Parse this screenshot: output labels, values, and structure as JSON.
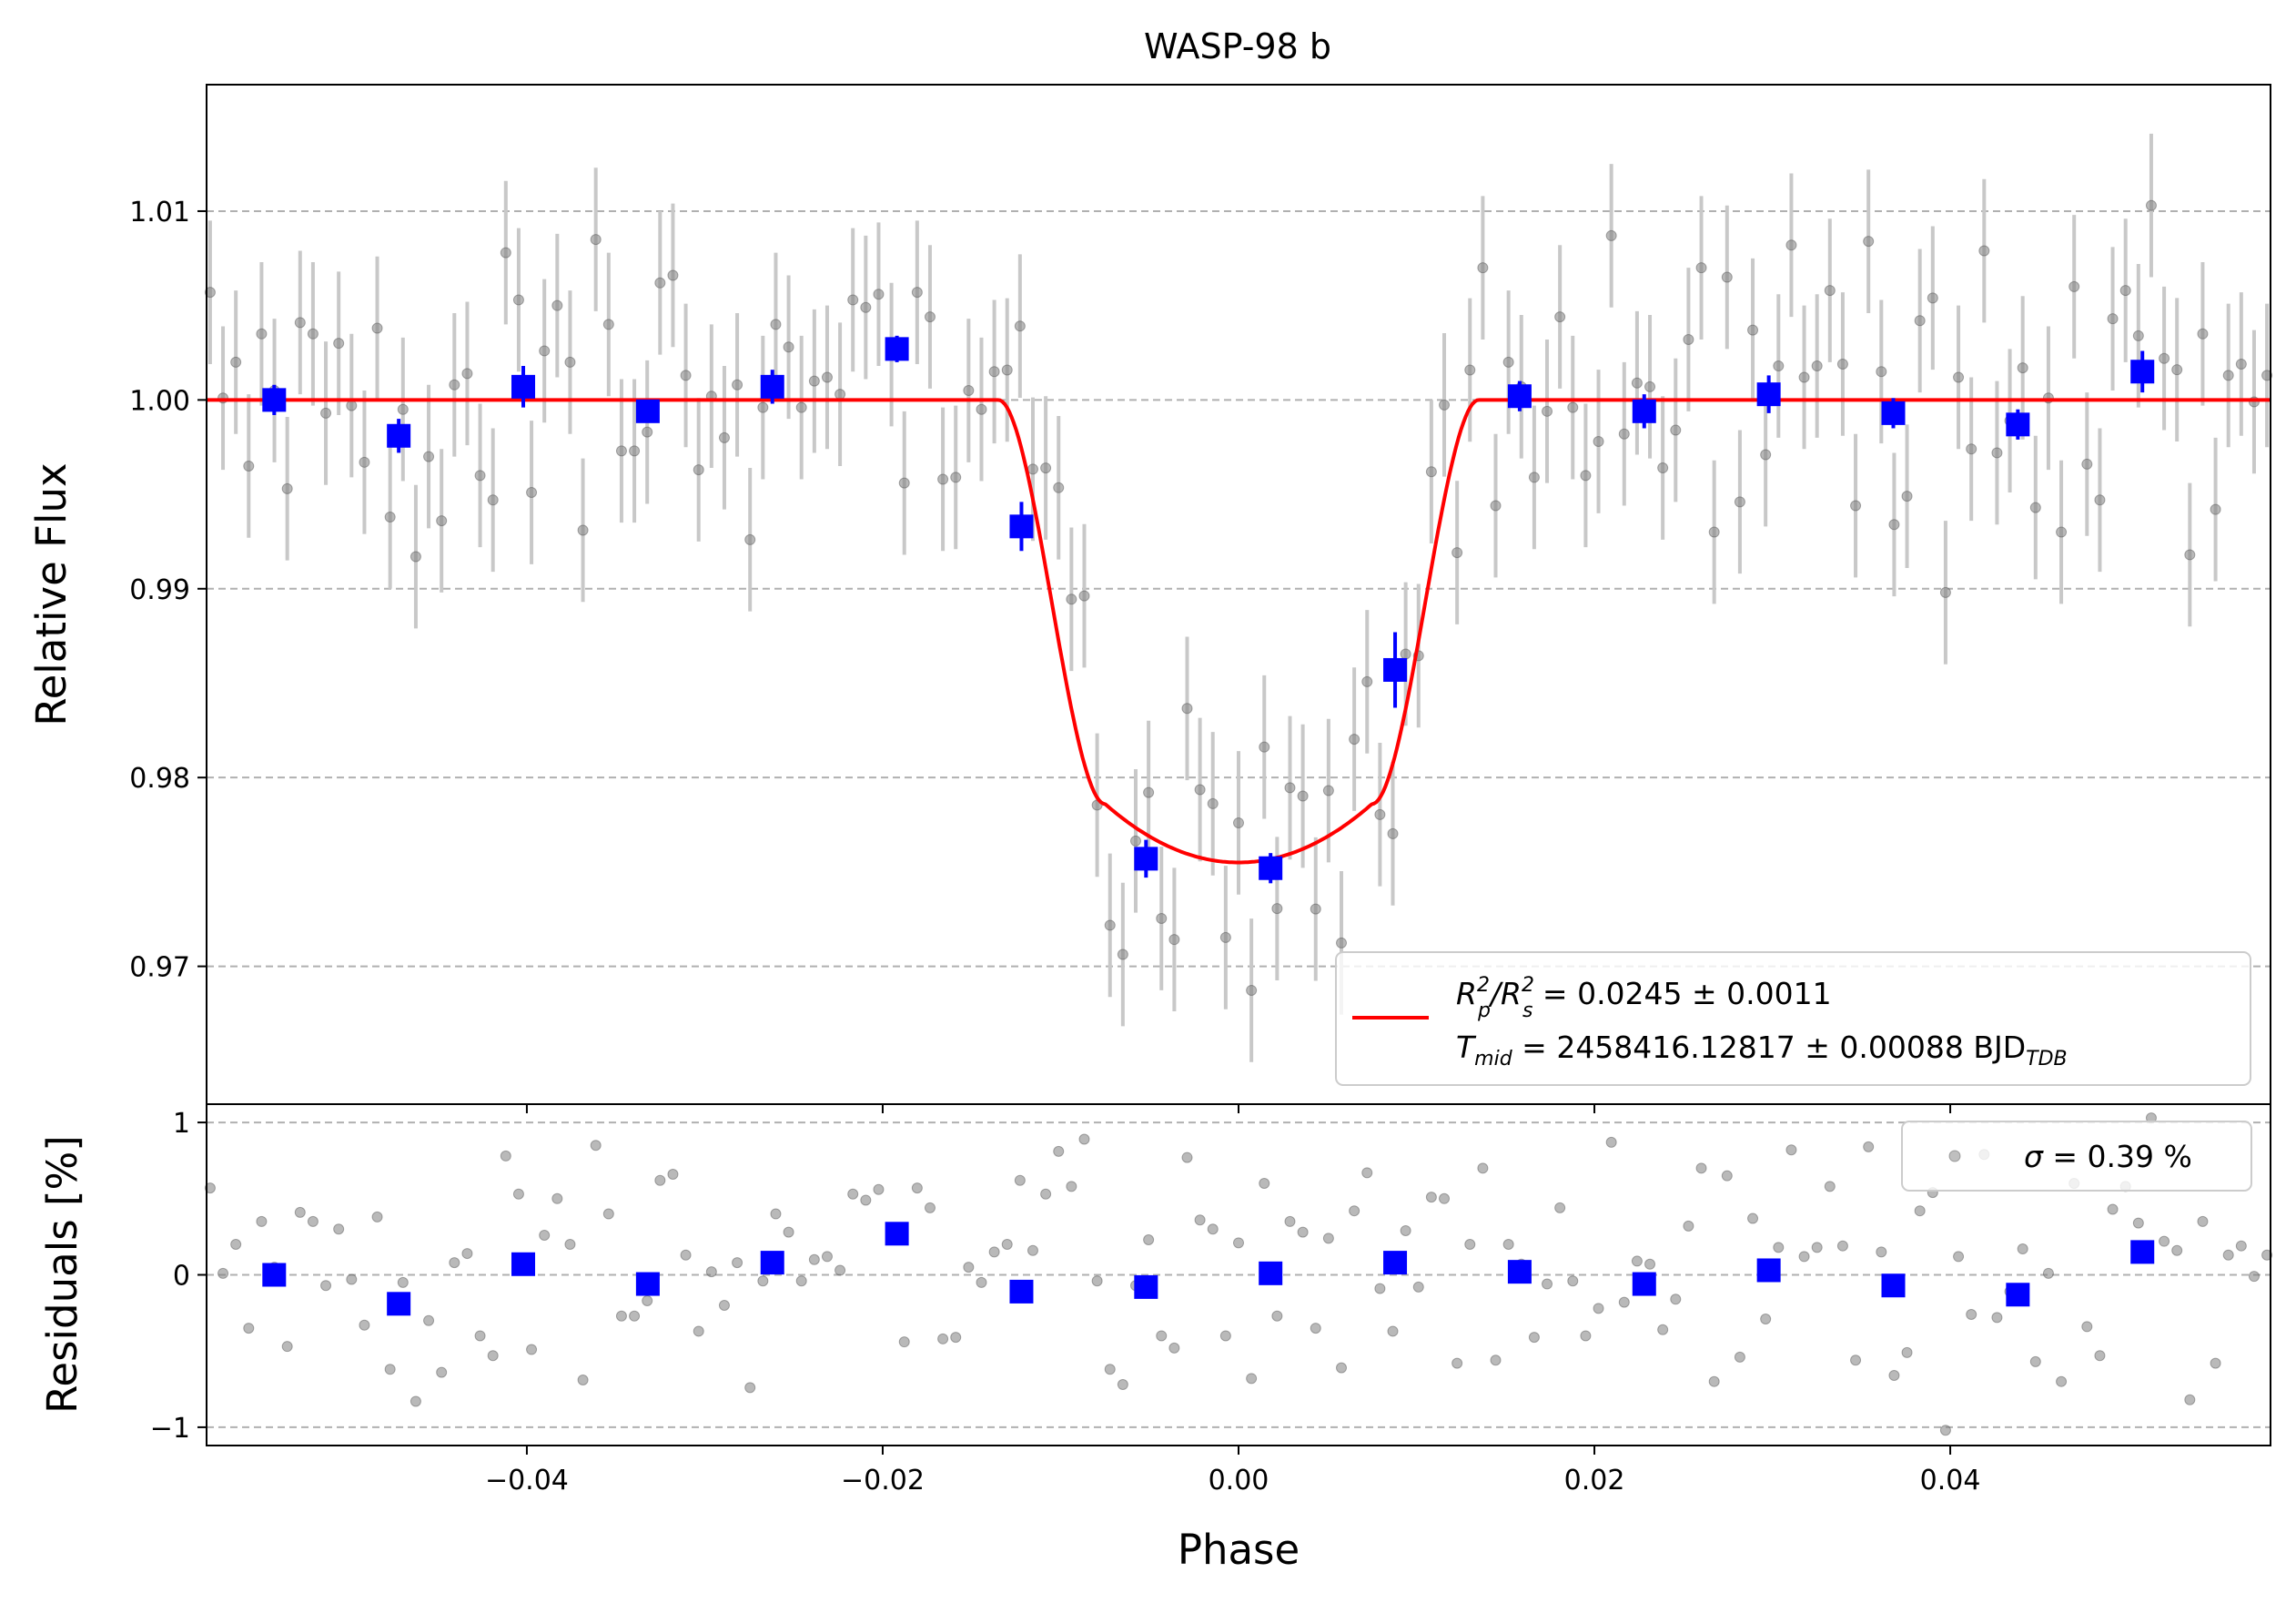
{
  "chart_data": [
    {
      "type": "scatter",
      "panel": "light-curve",
      "title": "WASP-98 b",
      "xlabel": "",
      "ylabel": "Relative Flux",
      "xlim": [
        -0.058,
        0.058
      ],
      "ylim": [
        0.9627,
        1.0167
      ],
      "yticks": [
        0.97,
        0.98,
        0.99,
        1.0,
        1.01
      ],
      "ytick_labels": [
        "0.97",
        "0.98",
        "0.99",
        "1.00",
        "1.01"
      ],
      "grid": "y-dashed",
      "legend": {
        "placement": "lower-right",
        "entries": [
          {
            "series": "model",
            "line1_main": "R",
            "line1_sup1": "2",
            "line1_sub1": "p",
            "line1_slash": "/R",
            "line1_sup2": "2",
            "line1_sub2": "s",
            "line1_rest": " = 0.0245 ± 0.0011",
            "line2_main": "T",
            "line2_sub": "mid",
            "line2_rest": " = 2458416.12817 ± 0.00088 BJD",
            "line2_sub2": "TDB"
          }
        ]
      },
      "transit_model": {
        "depth": 0.0245,
        "t14_half": 0.0135,
        "t23_half": 0.0075,
        "baseline": 1.0
      },
      "binned": {
        "x": [
          -0.0542,
          -0.0472,
          -0.0402,
          -0.0332,
          -0.0262,
          -0.0192,
          -0.0122,
          -0.0052,
          0.0018,
          0.0088,
          0.0158,
          0.0228,
          0.0298,
          0.0368,
          0.0438,
          0.0508
        ],
        "y": [
          1.0,
          0.9981,
          1.0007,
          0.9994,
          1.0007,
          1.0027,
          0.9933,
          0.9757,
          0.9752,
          0.9857,
          1.0002,
          0.9994,
          1.0003,
          0.9993,
          0.9987,
          1.0015
        ],
        "err": [
          0.0008,
          0.0009,
          0.0011,
          0.0006,
          0.0009,
          0.0007,
          0.0013,
          0.001,
          0.0008,
          0.002,
          0.0008,
          0.0009,
          0.001,
          0.0008,
          0.0008,
          0.0011
        ]
      },
      "residuals_seed": [
        0.57,
        0.01,
        0.2,
        -0.35,
        0.35,
        0.05,
        -0.47,
        0.41,
        0.35,
        -0.07,
        0.3,
        -0.03,
        -0.33,
        0.38,
        -0.62,
        -0.05,
        -0.83,
        -0.3,
        -0.64,
        0.08,
        0.14,
        -0.4,
        -0.53,
        0.78,
        0.53,
        -0.49,
        0.26,
        0.5,
        0.2,
        -0.69,
        0.85,
        0.4,
        -0.27,
        -0.27,
        -0.17,
        0.62,
        0.66,
        0.13,
        -0.37,
        0.02,
        -0.2,
        0.08,
        -0.74,
        -0.04,
        0.4,
        0.28,
        -0.04,
        0.1,
        0.12,
        0.03,
        0.53,
        0.49,
        0.56,
        0.24,
        -0.44,
        0.57,
        0.44,
        -0.42,
        -0.41,
        0.05,
        -0.05,
        0.15,
        0.2,
        0.62,
        0.16,
        0.53,
        0.81,
        0.58,
        0.89,
        -0.04,
        -0.62,
        -0.72,
        -0.07,
        0.23,
        -0.4,
        -0.48,
        0.77,
        0.36,
        0.3,
        -0.4,
        0.21,
        -0.68,
        0.6,
        -0.27,
        0.35,
        0.28,
        -0.35,
        0.24,
        -0.61,
        0.42,
        0.67,
        -0.09,
        -0.37,
        0.29,
        -0.08,
        0.51,
        0.5,
        -0.58,
        0.2,
        0.7,
        -0.56,
        0.2,
        0.07,
        -0.41,
        -0.06,
        0.44,
        -0.04,
        -0.4,
        -0.22,
        0.87,
        -0.18,
        0.09,
        0.07,
        -0.36,
        -0.16,
        0.32,
        0.7,
        -0.7,
        0.65,
        -0.54,
        0.37,
        -0.29,
        0.18,
        0.82,
        0.12,
        0.18,
        0.58,
        0.19,
        -0.56,
        0.84,
        0.15,
        -0.66,
        -0.51,
        0.42,
        0.54,
        -1.02,
        0.12,
        -0.26,
        0.79,
        -0.28,
        -0.11,
        0.17,
        -0.57,
        0.01,
        -0.7,
        0.6,
        -0.34,
        -0.53,
        0.43,
        0.58,
        0.34,
        1.03,
        0.22,
        0.16,
        -0.82,
        0.35,
        -0.58,
        0.13,
        0.19,
        -0.01,
        0.13
      ]
    },
    {
      "type": "scatter",
      "panel": "residuals",
      "xlabel": "Phase",
      "ylabel": "Residuals [%]",
      "xlim": [
        -0.058,
        0.058
      ],
      "ylim": [
        -1.12,
        1.12
      ],
      "xticks": [
        -0.04,
        -0.02,
        0.0,
        0.02,
        0.04
      ],
      "xtick_labels": [
        "−0.04",
        "−0.02",
        "0.00",
        "0.02",
        "0.04"
      ],
      "yticks": [
        -1,
        0,
        1
      ],
      "ytick_labels": [
        "−1",
        "0",
        "1"
      ],
      "grid": "y-dashed",
      "legend": {
        "placement": "top-right",
        "label_sigma": "σ",
        "label_rest": " = 0.39 %"
      },
      "binned_residuals": {
        "x": [
          -0.0542,
          -0.0472,
          -0.0402,
          -0.0332,
          -0.0262,
          -0.0192,
          -0.0122,
          -0.0052,
          0.0018,
          0.0088,
          0.0158,
          0.0228,
          0.0298,
          0.0368,
          0.0438,
          0.0508
        ],
        "y": [
          0.0,
          -0.19,
          0.07,
          -0.06,
          0.08,
          0.27,
          -0.11,
          -0.08,
          0.01,
          0.08,
          0.02,
          -0.06,
          0.03,
          -0.07,
          -0.13,
          0.15
        ]
      }
    }
  ],
  "colors": {
    "model": "#ff0000",
    "binned": "#0000ff",
    "raw_points": "#808080",
    "raw_errorbars": "#c8c8c8",
    "grid": "#b0b0b0"
  }
}
